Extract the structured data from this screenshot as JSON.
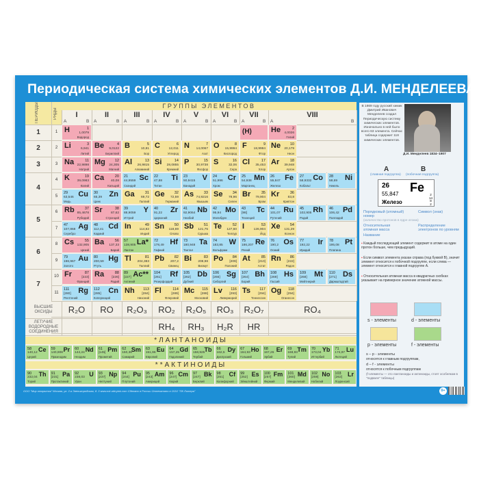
{
  "title": "Периодическая система химических элементов Д.И. МЕНДЕЛЕЕВА",
  "headers": {
    "periods": "ПЕРИОДЫ",
    "rows": "РЯДЫ",
    "groups": "ГРУППЫ ЭЛЕМЕНТОВ",
    "group_numerals": [
      "I",
      "II",
      "III",
      "IV",
      "V",
      "VI",
      "VII",
      "VIII"
    ],
    "sub_a": "A",
    "sub_b": "B"
  },
  "period_labels": [
    "1",
    "2",
    "3",
    "4",
    "5",
    "6",
    "7"
  ],
  "row_labels": [
    "1",
    "2",
    "3",
    "4",
    "5",
    "6",
    "7",
    "8",
    "9",
    "10",
    "11"
  ],
  "hydrogen_in_vii": "(H)",
  "element_fields": [
    "symbol",
    "number",
    "mass",
    "name",
    "row",
    "group",
    "subgroup",
    "block"
  ],
  "elements": [
    [
      "H",
      1,
      "1,0079",
      "Водород",
      1,
      "I",
      "A",
      "s"
    ],
    [
      "He",
      2,
      "4,0026",
      "Гелий",
      1,
      "VIII",
      "A",
      "s"
    ],
    [
      "Li",
      3,
      "6,941",
      "Литий",
      2,
      "I",
      "A",
      "s"
    ],
    [
      "Be",
      4,
      "9,0122",
      "Бериллий",
      2,
      "II",
      "A",
      "s"
    ],
    [
      "B",
      5,
      "10,81",
      "Бор",
      2,
      "III",
      "A",
      "p"
    ],
    [
      "C",
      6,
      "12,011",
      "Углерод",
      2,
      "IV",
      "A",
      "p"
    ],
    [
      "N",
      7,
      "14,0067",
      "Азот",
      2,
      "V",
      "A",
      "p"
    ],
    [
      "O",
      8,
      "15,9994",
      "Кислород",
      2,
      "VI",
      "A",
      "p"
    ],
    [
      "F",
      9,
      "18,9984",
      "Фтор",
      2,
      "VII",
      "A",
      "p"
    ],
    [
      "Ne",
      10,
      "20,179",
      "Неон",
      2,
      "VIII",
      "A",
      "p"
    ],
    [
      "Na",
      11,
      "22,9898",
      "Натрий",
      3,
      "I",
      "A",
      "s"
    ],
    [
      "Mg",
      12,
      "24,305",
      "Магний",
      3,
      "II",
      "A",
      "s"
    ],
    [
      "Al",
      13,
      "26,9815",
      "Алюминий",
      3,
      "III",
      "A",
      "p"
    ],
    [
      "Si",
      14,
      "28,0855",
      "Кремний",
      3,
      "IV",
      "A",
      "p"
    ],
    [
      "P",
      15,
      "30,9738",
      "Фосфор",
      3,
      "V",
      "A",
      "p"
    ],
    [
      "S",
      16,
      "32,06",
      "Сера",
      3,
      "VI",
      "A",
      "p"
    ],
    [
      "Cl",
      17,
      "35,453",
      "Хлор",
      3,
      "VII",
      "A",
      "p"
    ],
    [
      "Ar",
      18,
      "39,948",
      "Аргон",
      3,
      "VIII",
      "A",
      "p"
    ],
    [
      "K",
      19,
      "39,0983",
      "Калий",
      4,
      "I",
      "A",
      "s"
    ],
    [
      "Ca",
      20,
      "40,08",
      "Кальций",
      4,
      "II",
      "A",
      "s"
    ],
    [
      "Sc",
      21,
      "44,9559",
      "Скандий",
      4,
      "III",
      "B",
      "d"
    ],
    [
      "Ti",
      22,
      "47,88",
      "Титан",
      4,
      "IV",
      "B",
      "d"
    ],
    [
      "V",
      23,
      "50,9415",
      "Ванадий",
      4,
      "V",
      "B",
      "d"
    ],
    [
      "Cr",
      24,
      "51,996",
      "Хром",
      4,
      "VI",
      "B",
      "d"
    ],
    [
      "Mn",
      25,
      "54,938",
      "Марганец",
      4,
      "VII",
      "B",
      "d"
    ],
    [
      "Fe",
      26,
      "55,847",
      "Железо",
      4,
      "VIII",
      "B",
      "d"
    ],
    [
      "Co",
      27,
      "58,9332",
      "Кобальт",
      4,
      "VIII",
      "B",
      "d"
    ],
    [
      "Ni",
      28,
      "58,69",
      "Никель",
      4,
      "VIII",
      "B",
      "d"
    ],
    [
      "Cu",
      29,
      "63,546",
      "Медь",
      5,
      "I",
      "B",
      "d"
    ],
    [
      "Zn",
      30,
      "65,39",
      "Цинк",
      5,
      "II",
      "B",
      "d"
    ],
    [
      "Ga",
      31,
      "69,72",
      "Галлий",
      5,
      "III",
      "A",
      "p"
    ],
    [
      "Ge",
      32,
      "72,59",
      "Германий",
      5,
      "IV",
      "A",
      "p"
    ],
    [
      "As",
      33,
      "74,9216",
      "Мышьяк",
      5,
      "V",
      "A",
      "p"
    ],
    [
      "Se",
      34,
      "78,96",
      "Селен",
      5,
      "VI",
      "A",
      "p"
    ],
    [
      "Br",
      35,
      "79,904",
      "Бром",
      5,
      "VII",
      "A",
      "p"
    ],
    [
      "Kr",
      36,
      "83,8",
      "Криптон",
      5,
      "VIII",
      "A",
      "p"
    ],
    [
      "Rb",
      37,
      "85,4678",
      "Рубидий",
      6,
      "I",
      "A",
      "s"
    ],
    [
      "Sr",
      38,
      "87,62",
      "Стронций",
      6,
      "II",
      "A",
      "s"
    ],
    [
      "Y",
      39,
      "88,9059",
      "Иттрий",
      6,
      "III",
      "B",
      "d"
    ],
    [
      "Zr",
      40,
      "91,22",
      "Цирконий",
      6,
      "IV",
      "B",
      "d"
    ],
    [
      "Nb",
      41,
      "92,9064",
      "Ниобий",
      6,
      "V",
      "B",
      "d"
    ],
    [
      "Mo",
      42,
      "95,94",
      "Молибден",
      6,
      "VI",
      "B",
      "d"
    ],
    [
      "Tc",
      43,
      "[98]",
      "Технеций",
      6,
      "VII",
      "B",
      "d"
    ],
    [
      "Ru",
      44,
      "101,07",
      "Рутений",
      6,
      "VIII",
      "B",
      "d"
    ],
    [
      "Rh",
      45,
      "102,905",
      "Родий",
      6,
      "VIII",
      "B",
      "d"
    ],
    [
      "Pd",
      46,
      "106,42",
      "Палладий",
      6,
      "VIII",
      "B",
      "d"
    ],
    [
      "Ag",
      47,
      "107,868",
      "Серебро",
      7,
      "I",
      "B",
      "d"
    ],
    [
      "Cd",
      48,
      "112,41",
      "Кадмий",
      7,
      "II",
      "B",
      "d"
    ],
    [
      "In",
      49,
      "114,82",
      "Индий",
      7,
      "III",
      "A",
      "p"
    ],
    [
      "Sn",
      50,
      "118,69",
      "Олово",
      7,
      "IV",
      "A",
      "p"
    ],
    [
      "Sb",
      51,
      "121,75",
      "Сурьма",
      7,
      "V",
      "A",
      "p"
    ],
    [
      "Te",
      52,
      "127,60",
      "Теллур",
      7,
      "VI",
      "A",
      "p"
    ],
    [
      "I",
      53,
      "126,904",
      "Йод",
      7,
      "VII",
      "A",
      "p"
    ],
    [
      "Xe",
      54,
      "131,29",
      "Ксенон",
      7,
      "VIII",
      "A",
      "p"
    ],
    [
      "Cs",
      55,
      "132,905",
      "Цезий",
      8,
      "I",
      "A",
      "s"
    ],
    [
      "Ba",
      56,
      "137,33",
      "Барий",
      8,
      "II",
      "A",
      "s"
    ],
    [
      "La*",
      57,
      "138,905",
      "Лантан",
      8,
      "III",
      "B",
      "f"
    ],
    [
      "Hf",
      72,
      "178,49",
      "Гафний",
      8,
      "IV",
      "B",
      "d"
    ],
    [
      "Ta",
      73,
      "180,948",
      "Тантал",
      8,
      "V",
      "B",
      "d"
    ],
    [
      "W",
      74,
      "183,85",
      "Вольфрам",
      8,
      "VI",
      "B",
      "d"
    ],
    [
      "Re",
      75,
      "186,207",
      "Рений",
      8,
      "VII",
      "B",
      "d"
    ],
    [
      "Os",
      76,
      "190,2",
      "Осмий",
      8,
      "VIII",
      "B",
      "d"
    ],
    [
      "Ir",
      77,
      "192,22",
      "Иридий",
      8,
      "VIII",
      "B",
      "d"
    ],
    [
      "Pt",
      78,
      "195,08",
      "Платина",
      8,
      "VIII",
      "B",
      "d"
    ],
    [
      "Au",
      79,
      "196,967",
      "Золото",
      9,
      "I",
      "B",
      "d"
    ],
    [
      "Hg",
      80,
      "200,59",
      "Ртуть",
      9,
      "II",
      "B",
      "d"
    ],
    [
      "Tl",
      81,
      "204,383",
      "Таллий",
      9,
      "III",
      "A",
      "p"
    ],
    [
      "Pb",
      82,
      "207,2",
      "Свинец",
      9,
      "IV",
      "A",
      "p"
    ],
    [
      "Bi",
      83,
      "208,98",
      "Висмут",
      9,
      "V",
      "A",
      "p"
    ],
    [
      "Po",
      84,
      "[209]",
      "Полоний",
      9,
      "VI",
      "A",
      "p"
    ],
    [
      "At",
      85,
      "[210]",
      "Астат",
      9,
      "VII",
      "A",
      "p"
    ],
    [
      "Rn",
      86,
      "[222]",
      "Радон",
      9,
      "VIII",
      "A",
      "p"
    ],
    [
      "Fr",
      87,
      "[223]",
      "Франций",
      10,
      "I",
      "A",
      "s"
    ],
    [
      "Ra",
      88,
      "[226]",
      "Радий",
      10,
      "II",
      "A",
      "s"
    ],
    [
      "Ac**",
      89,
      "[227]",
      "Актиний",
      10,
      "III",
      "B",
      "f"
    ],
    [
      "Rf",
      104,
      "[261]",
      "Резерфордий",
      10,
      "IV",
      "B",
      "d"
    ],
    [
      "Db",
      105,
      "[262]",
      "Дубний",
      10,
      "V",
      "B",
      "d"
    ],
    [
      "Sg",
      106,
      "[266]",
      "Сиборгий",
      10,
      "VI",
      "B",
      "d"
    ],
    [
      "Bh",
      107,
      "[264]",
      "Борий",
      10,
      "VII",
      "B",
      "d"
    ],
    [
      "Hs",
      108,
      "[269]",
      "Гассий",
      10,
      "VIII",
      "B",
      "d"
    ],
    [
      "Mt",
      109,
      "[268]",
      "Мейтнерий",
      10,
      "VIII",
      "B",
      "d"
    ],
    [
      "Ds",
      110,
      "[271]",
      "Дармштадтий",
      10,
      "VIII",
      "B",
      "d"
    ],
    [
      "Rg",
      111,
      "[280]",
      "Рентгений",
      11,
      "I",
      "B",
      "d"
    ],
    [
      "Cn",
      112,
      "[285]",
      "Коперниций",
      11,
      "II",
      "B",
      "d"
    ],
    [
      "Nh",
      113,
      "[284]",
      "Нихоний",
      11,
      "III",
      "A",
      "p"
    ],
    [
      "Fl",
      114,
      "[289]",
      "Флеровий",
      11,
      "IV",
      "A",
      "p"
    ],
    [
      "Mc",
      115,
      "[288]",
      "Московий",
      11,
      "V",
      "A",
      "p"
    ],
    [
      "Lv",
      116,
      "[293]",
      "Ливерморий",
      11,
      "VI",
      "A",
      "p"
    ],
    [
      "Ts",
      117,
      "[294]",
      "Теннессин",
      11,
      "VII",
      "A",
      "p"
    ],
    [
      "Og",
      118,
      "[294]",
      "Оганесон",
      11,
      "VIII",
      "A",
      "p"
    ]
  ],
  "oxides": {
    "label": "ВЫСШИЕ ОКСИДЫ",
    "formulas": [
      "R₂O",
      "RO",
      "R₂O₃",
      "RO₂",
      "R₂O₅",
      "RO₃",
      "R₂O₇",
      "RO₄"
    ]
  },
  "hydrides": {
    "label": "ЛЕТУЧИЕ ВОДОРОДНЫЕ СОЕДИНЕНИЯ",
    "formulas": [
      "",
      "",
      "",
      "RH₄",
      "RH₃",
      "H₂R",
      "HR",
      ""
    ]
  },
  "lanthanides": {
    "title": "*ЛАНТАНОИДЫ",
    "items": [
      [
        "Ce",
        58,
        "140,12",
        "Церий"
      ],
      [
        "Pr",
        59,
        "140,908",
        "Празеодим"
      ],
      [
        "Nd",
        60,
        "144,24",
        "Неодим"
      ],
      [
        "Pm",
        61,
        "[145]",
        "Прометий"
      ],
      [
        "Sm",
        62,
        "150,36",
        "Самарий"
      ],
      [
        "Eu",
        63,
        "151,96",
        "Европий"
      ],
      [
        "Gd",
        64,
        "157,25",
        "Гадолиний"
      ],
      [
        "Tb",
        65,
        "158,925",
        "Тербий"
      ],
      [
        "Dy",
        66,
        "162,5",
        "Диспрозий"
      ],
      [
        "Ho",
        67,
        "164,93",
        "Гольмий"
      ],
      [
        "Er",
        68,
        "167,26",
        "Эрбий"
      ],
      [
        "Tm",
        69,
        "168,93",
        "Тулий"
      ],
      [
        "Yb",
        70,
        "173,04",
        "Иттербий"
      ],
      [
        "Lu",
        71,
        "174,97",
        "Лютеций"
      ]
    ]
  },
  "actinides": {
    "title": "**АКТИНОИДЫ",
    "items": [
      [
        "Th",
        90,
        "232,04",
        "Торий"
      ],
      [
        "Pa",
        91,
        "[231]",
        "Протактиний"
      ],
      [
        "U",
        92,
        "238,03",
        "Уран"
      ],
      [
        "Np",
        93,
        "[237]",
        "Нептуний"
      ],
      [
        "Pu",
        94,
        "[244]",
        "Плутоний"
      ],
      [
        "Am",
        95,
        "[243]",
        "Америций"
      ],
      [
        "Cm",
        96,
        "[247]",
        "Кюрий"
      ],
      [
        "Bk",
        97,
        "[247]",
        "Берклий"
      ],
      [
        "Cf",
        98,
        "[251]",
        "Калифорний"
      ],
      [
        "Es",
        99,
        "[252]",
        "Эйнштейний"
      ],
      [
        "Fm",
        100,
        "[257]",
        "Фермий"
      ],
      [
        "Md",
        101,
        "[260]",
        "Менделевий"
      ],
      [
        "No",
        102,
        "[259]",
        "Нобелий"
      ],
      [
        "Lr",
        103,
        "[262]",
        "Лоуренсий"
      ]
    ]
  },
  "panel": {
    "intro": "В 1869 году русский химик Дмитрий Иванович Менделеев создал Периодическую систему химических элементов. Изначально в ней было всего 63 элемента. Сейчас таблица содержит 118 химических элементов.",
    "portrait_caption": "Д.И. Менделеев 1834–1907",
    "legend_a": "A",
    "legend_a_note": "(главная подгруппа)",
    "legend_b": "B",
    "legend_b_note": "(побочная подгруппа)",
    "example": {
      "number": "26",
      "mass": "55,847",
      "symbol": "Fe",
      "name": "Железо",
      "electrons": [
        "2",
        "14",
        "8",
        "2"
      ]
    },
    "key_number": "Порядковый (атомный) номер",
    "key_number_note": "(количество протонов в ядре атома)",
    "key_symbol": "Символ (знак)",
    "key_mass": "Относительная атомная масса",
    "key_electrons": "Распределение электронов по уровням",
    "key_name": "Название",
    "bullets": [
      "Каждый последующий элемент содержит в атоме на один протон больше, чем предыдущий.",
      "Если символ элемента указан справа (под буквой В), значит элемент относится к побочной подгруппе, если слева — элемент относится к главной подгруппе А.",
      "Относительная атомная масса в квадратных скобках указывает на примерное значение атомной массы."
    ],
    "blocks": [
      {
        "label": "s - элементы",
        "color": "#f4a9b6"
      },
      {
        "label": "d - элементы",
        "color": "#a9def5"
      },
      {
        "label": "p - элементы",
        "color": "#f6e59b"
      },
      {
        "label": "f - элементы",
        "color": "#a9d98b"
      }
    ],
    "note_sp": "s – p - элементы",
    "note_sp_text": "относятся к главным подгруппам,",
    "note_df": "d – f - элементы",
    "note_df_text": "относятся к побочным подгруппам",
    "note_f": "(f-элементы — это лантаноиды и актиноиды, стоят особняком в \"подвале\" таблицы)",
    "age_badge": "0+"
  },
  "footer": "ООО \"Мир открыток\"  Москва, ул. 2-я Звенигородская, д. 3   www.mir-otkrytok.com   Сделано в России   Отпечатано в ООО \"ПК Литера\""
}
